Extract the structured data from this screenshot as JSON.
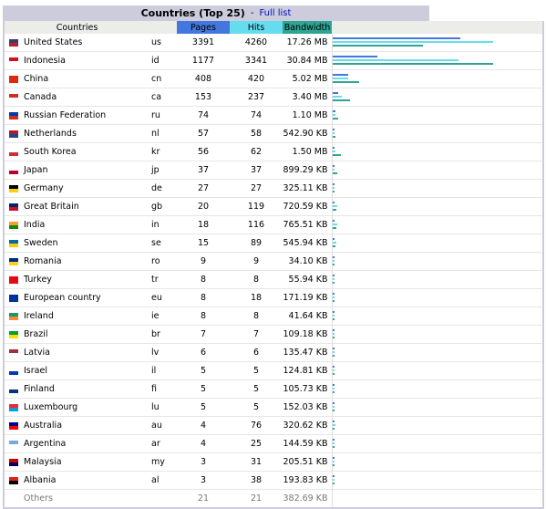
{
  "header": {
    "title": "Countries (Top 25)",
    "separator": "-",
    "full_list_link": "Full list"
  },
  "columns": {
    "countries": "Countries",
    "pages": "Pages",
    "hits": "Hits",
    "bandwidth": "Bandwidth"
  },
  "colors": {
    "pages": "#4477dd",
    "hits": "#66ddee",
    "bandwidth": "#2ea495"
  },
  "rows": [
    {
      "name": "United States",
      "code": "us",
      "pages": "3391",
      "hits": "4260",
      "bandwidth": "17.26 MB",
      "flag_colors": [
        "#3c3b6e",
        "#b22234"
      ],
      "bars": {
        "pages": 0.795,
        "hits": 1.0,
        "bandwidth": 0.56
      }
    },
    {
      "name": "Indonesia",
      "code": "id",
      "pages": "1177",
      "hits": "3341",
      "bandwidth": "30.84 MB",
      "flag_colors": [
        "#ce1126",
        "#ffffff"
      ],
      "bars": {
        "pages": 0.276,
        "hits": 0.784,
        "bandwidth": 1.0
      }
    },
    {
      "name": "China",
      "code": "cn",
      "pages": "408",
      "hits": "420",
      "bandwidth": "5.02 MB",
      "flag_colors": [
        "#de2910",
        "#de2910"
      ],
      "bars": {
        "pages": 0.096,
        "hits": 0.099,
        "bandwidth": 0.163
      }
    },
    {
      "name": "Canada",
      "code": "ca",
      "pages": "153",
      "hits": "237",
      "bandwidth": "3.40 MB",
      "flag_colors": [
        "#d52b1e",
        "#ffffff"
      ],
      "bars": {
        "pages": 0.036,
        "hits": 0.056,
        "bandwidth": 0.11
      }
    },
    {
      "name": "Russian Federation",
      "code": "ru",
      "pages": "74",
      "hits": "74",
      "bandwidth": "1.10 MB",
      "flag_colors": [
        "#0039a6",
        "#d52b1e"
      ],
      "bars": {
        "pages": 0.017,
        "hits": 0.017,
        "bandwidth": 0.036
      }
    },
    {
      "name": "Netherlands",
      "code": "nl",
      "pages": "57",
      "hits": "58",
      "bandwidth": "542.90 KB",
      "flag_colors": [
        "#ae1c28",
        "#21468b"
      ],
      "bars": {
        "pages": 0.013,
        "hits": 0.014,
        "bandwidth": 0.017
      }
    },
    {
      "name": "South Korea",
      "code": "kr",
      "pages": "56",
      "hits": "62",
      "bandwidth": "1.50 MB",
      "flag_colors": [
        "#ffffff",
        "#cd2e3a"
      ],
      "bars": {
        "pages": 0.013,
        "hits": 0.015,
        "bandwidth": 0.049
      }
    },
    {
      "name": "Japan",
      "code": "jp",
      "pages": "37",
      "hits": "37",
      "bandwidth": "899.29 KB",
      "flag_colors": [
        "#ffffff",
        "#bc002d"
      ],
      "bars": {
        "pages": 0.009,
        "hits": 0.009,
        "bandwidth": 0.028
      }
    },
    {
      "name": "Germany",
      "code": "de",
      "pages": "27",
      "hits": "27",
      "bandwidth": "325.11 KB",
      "flag_colors": [
        "#000000",
        "#ffce00"
      ],
      "bars": {
        "pages": 0.006,
        "hits": 0.006,
        "bandwidth": 0.01
      }
    },
    {
      "name": "Great Britain",
      "code": "gb",
      "pages": "20",
      "hits": "119",
      "bandwidth": "720.59 KB",
      "flag_colors": [
        "#012169",
        "#c8102e"
      ],
      "bars": {
        "pages": 0.005,
        "hits": 0.028,
        "bandwidth": 0.023
      }
    },
    {
      "name": "India",
      "code": "in",
      "pages": "18",
      "hits": "116",
      "bandwidth": "765.51 KB",
      "flag_colors": [
        "#ff9933",
        "#138808"
      ],
      "bars": {
        "pages": 0.004,
        "hits": 0.027,
        "bandwidth": 0.024
      }
    },
    {
      "name": "Sweden",
      "code": "se",
      "pages": "15",
      "hits": "89",
      "bandwidth": "545.94 KB",
      "flag_colors": [
        "#006aa7",
        "#fecc00"
      ],
      "bars": {
        "pages": 0.004,
        "hits": 0.021,
        "bandwidth": 0.017
      }
    },
    {
      "name": "Romania",
      "code": "ro",
      "pages": "9",
      "hits": "9",
      "bandwidth": "34.10 KB",
      "flag_colors": [
        "#002b7f",
        "#fcd116"
      ],
      "bars": {
        "pages": 0.002,
        "hits": 0.002,
        "bandwidth": 0.001
      }
    },
    {
      "name": "Turkey",
      "code": "tr",
      "pages": "8",
      "hits": "8",
      "bandwidth": "55.94 KB",
      "flag_colors": [
        "#e30a17",
        "#e30a17"
      ],
      "bars": {
        "pages": 0.002,
        "hits": 0.002,
        "bandwidth": 0.002
      }
    },
    {
      "name": "European country",
      "code": "eu",
      "pages": "8",
      "hits": "18",
      "bandwidth": "171.19 KB",
      "flag_colors": [
        "#003399",
        "#003399"
      ],
      "bars": {
        "pages": 0.002,
        "hits": 0.004,
        "bandwidth": 0.005
      }
    },
    {
      "name": "Ireland",
      "code": "ie",
      "pages": "8",
      "hits": "8",
      "bandwidth": "41.64 KB",
      "flag_colors": [
        "#169b62",
        "#ff883e"
      ],
      "bars": {
        "pages": 0.002,
        "hits": 0.002,
        "bandwidth": 0.001
      }
    },
    {
      "name": "Brazil",
      "code": "br",
      "pages": "7",
      "hits": "7",
      "bandwidth": "109.18 KB",
      "flag_colors": [
        "#009c3b",
        "#ffdf00"
      ],
      "bars": {
        "pages": 0.002,
        "hits": 0.002,
        "bandwidth": 0.003
      }
    },
    {
      "name": "Latvia",
      "code": "lv",
      "pages": "6",
      "hits": "6",
      "bandwidth": "135.47 KB",
      "flag_colors": [
        "#9e3039",
        "#ffffff"
      ],
      "bars": {
        "pages": 0.001,
        "hits": 0.001,
        "bandwidth": 0.004
      }
    },
    {
      "name": "Israel",
      "code": "il",
      "pages": "5",
      "hits": "5",
      "bandwidth": "124.81 KB",
      "flag_colors": [
        "#ffffff",
        "#0038b8"
      ],
      "bars": {
        "pages": 0.001,
        "hits": 0.001,
        "bandwidth": 0.004
      }
    },
    {
      "name": "Finland",
      "code": "fi",
      "pages": "5",
      "hits": "5",
      "bandwidth": "105.73 KB",
      "flag_colors": [
        "#ffffff",
        "#003580"
      ],
      "bars": {
        "pages": 0.001,
        "hits": 0.001,
        "bandwidth": 0.003
      }
    },
    {
      "name": "Luxembourg",
      "code": "lu",
      "pages": "5",
      "hits": "5",
      "bandwidth": "152.03 KB",
      "flag_colors": [
        "#ed2939",
        "#00a1de"
      ],
      "bars": {
        "pages": 0.001,
        "hits": 0.001,
        "bandwidth": 0.005
      }
    },
    {
      "name": "Australia",
      "code": "au",
      "pages": "4",
      "hits": "76",
      "bandwidth": "320.62 KB",
      "flag_colors": [
        "#00008b",
        "#ff0000"
      ],
      "bars": {
        "pages": 0.001,
        "hits": 0.018,
        "bandwidth": 0.01
      }
    },
    {
      "name": "Argentina",
      "code": "ar",
      "pages": "4",
      "hits": "25",
      "bandwidth": "144.59 KB",
      "flag_colors": [
        "#74acdf",
        "#ffffff"
      ],
      "bars": {
        "pages": 0.001,
        "hits": 0.006,
        "bandwidth": 0.005
      }
    },
    {
      "name": "Malaysia",
      "code": "my",
      "pages": "3",
      "hits": "31",
      "bandwidth": "205.51 KB",
      "flag_colors": [
        "#cc0001",
        "#010066"
      ],
      "bars": {
        "pages": 0.001,
        "hits": 0.007,
        "bandwidth": 0.006
      }
    },
    {
      "name": "Albania",
      "code": "al",
      "pages": "3",
      "hits": "38",
      "bandwidth": "193.83 KB",
      "flag_colors": [
        "#e41e20",
        "#000000"
      ],
      "bars": {
        "pages": 0.001,
        "hits": 0.009,
        "bandwidth": 0.006
      }
    }
  ],
  "others": {
    "name": "Others",
    "pages": "21",
    "hits": "21",
    "bandwidth": "382.69 KB"
  }
}
